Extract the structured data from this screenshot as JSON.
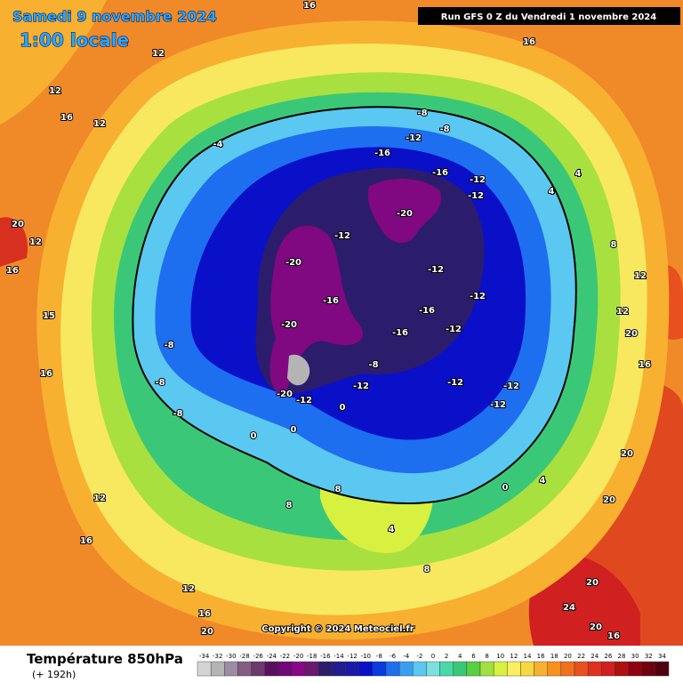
{
  "header": {
    "date": "Samedi 9 novembre 2024",
    "time": "1:00 locale",
    "run": "Run GFS 0 Z du Vendredi 1 novembre 2024"
  },
  "copyright": "Copyright © 2024 Meteociel.fr",
  "footer": {
    "title": "Température 850hPa",
    "lead": "(+ 192h)"
  },
  "legend": {
    "values": [
      -34,
      -32,
      -30,
      -28,
      -26,
      -24,
      -22,
      -20,
      -18,
      -16,
      -14,
      -12,
      -10,
      -8,
      -6,
      -4,
      -2,
      0,
      2,
      4,
      6,
      8,
      10,
      12,
      14,
      16,
      18,
      20,
      22,
      24,
      26,
      28,
      30,
      32,
      34
    ],
    "colors": [
      "#d4d4d4",
      "#b4b4b4",
      "#9c8ca4",
      "#845c84",
      "#6a3a6a",
      "#5a1060",
      "#700878",
      "#880888",
      "#6a1870",
      "#2c1c6c",
      "#201c90",
      "#1a1aa8",
      "#0a10c8",
      "#0a3ae0",
      "#1e6ef0",
      "#3a9ef0",
      "#5ac8f0",
      "#7ae0e0",
      "#4ad8a8",
      "#3ac878",
      "#58d040",
      "#a0e040",
      "#d8f040",
      "#f8f060",
      "#f8d840",
      "#f8b030",
      "#f89020",
      "#f07020",
      "#e85020",
      "#e03020",
      "#d02020",
      "#b01010",
      "#900010",
      "#700010",
      "#500010"
    ]
  },
  "map_labels": [
    16,
    12,
    12,
    12,
    -4,
    -8,
    -8,
    -12,
    -16,
    -16,
    -12,
    -12,
    -20,
    -12,
    -20,
    -16,
    -12,
    -12,
    -16,
    -16,
    -12,
    -20,
    -8,
    -12,
    -20,
    -12,
    -12,
    -12,
    -12,
    -8,
    -8,
    -8,
    0,
    0,
    0,
    0,
    4,
    4,
    4,
    8,
    12,
    12,
    20,
    16,
    20,
    20,
    20,
    24,
    20,
    16,
    12,
    16,
    12,
    16,
    15,
    20,
    12,
    16,
    8,
    8,
    4,
    8,
    16,
    16,
    20,
    16
  ]
}
